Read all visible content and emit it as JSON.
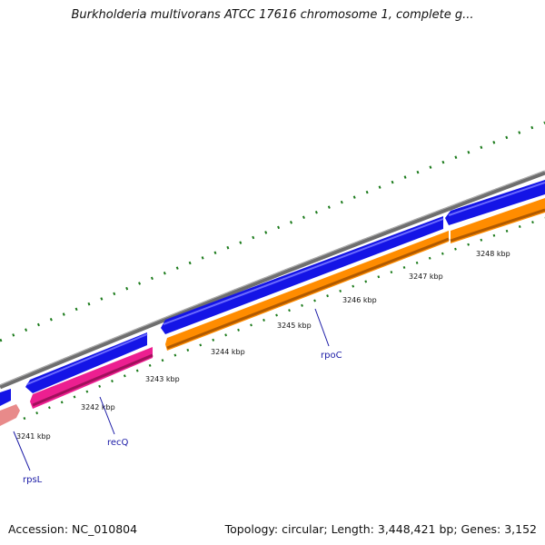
{
  "title": "Burkholderia multivorans ATCC 17616 chromosome 1, complete g...",
  "accession": "Accession: NC_010804",
  "summary": "Topology: circular; Length: 3,448,421 bp; Genes: 3,152",
  "kbp_labels": [
    "3241 kbp",
    "3242 kbp",
    "3243 kbp",
    "3244 kbp",
    "3245 kbp",
    "3246 kbp",
    "3247 kbp",
    "3248 kbp"
  ],
  "genes": [
    "rpsL",
    "recQ",
    "rpoC"
  ],
  "colors": {
    "backbone": "#808080",
    "forward_strand": "#1414e6",
    "rpsL": "#e88a8a",
    "recQ": "#ec1f90",
    "rpoC": "#ff8c00",
    "ticks": "#1a7a1a",
    "gene_label": "#1a1aa6"
  }
}
